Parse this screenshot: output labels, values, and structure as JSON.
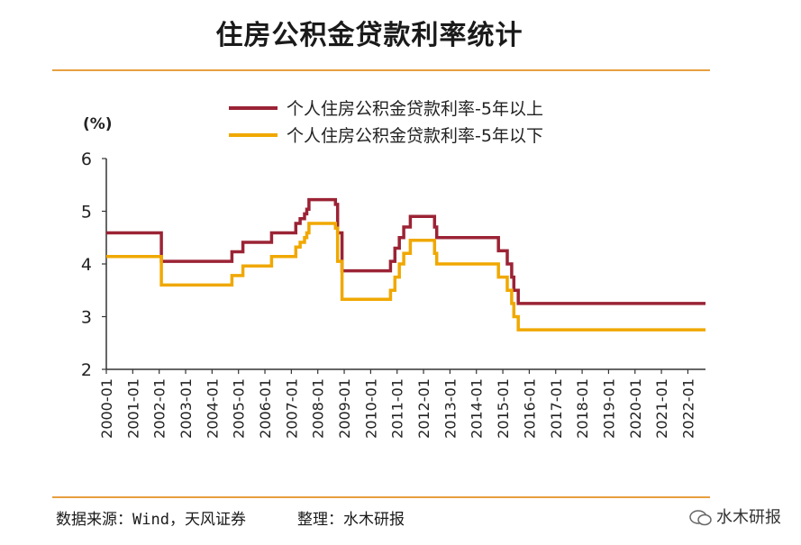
{
  "header": {
    "title": "住房公积金贷款利率统计"
  },
  "footer": {
    "source": "数据来源：Wind，天风证券",
    "compiler": "整理：水木研报",
    "watermark": "水木研报"
  },
  "colors": {
    "accent": "#e8a040",
    "series1": "#9b2335",
    "series2": "#f0a800"
  },
  "chart_data": {
    "type": "line",
    "ylabel": "(%)",
    "ylim": [
      2,
      6
    ],
    "yticks": [
      "2",
      "3",
      "4",
      "5",
      "6"
    ],
    "xlim": [
      "2000-01",
      "2022-09"
    ],
    "xticks": [
      "2000-01",
      "2001-01",
      "2002-01",
      "2003-01",
      "2004-01",
      "2005-01",
      "2006-01",
      "2007-01",
      "2008-01",
      "2009-01",
      "2010-01",
      "2011-01",
      "2012-01",
      "2013-01",
      "2014-01",
      "2015-01",
      "2016-01",
      "2017-01",
      "2018-01",
      "2019-01",
      "2020-01",
      "2021-01",
      "2022-01"
    ],
    "legend_position": "top",
    "grid": false,
    "series": [
      {
        "name": "个人住房公积金贷款利率-5年以上",
        "points": [
          [
            "2000-01",
            4.59
          ],
          [
            "2002-02",
            4.59
          ],
          [
            "2002-02",
            4.05
          ],
          [
            "2004-10",
            4.05
          ],
          [
            "2004-10",
            4.23
          ],
          [
            "2005-03",
            4.23
          ],
          [
            "2005-03",
            4.41
          ],
          [
            "2006-04",
            4.41
          ],
          [
            "2006-04",
            4.59
          ],
          [
            "2007-03",
            4.59
          ],
          [
            "2007-03",
            4.77
          ],
          [
            "2007-05",
            4.77
          ],
          [
            "2007-05",
            4.86
          ],
          [
            "2007-07",
            4.86
          ],
          [
            "2007-07",
            4.95
          ],
          [
            "2007-08",
            4.95
          ],
          [
            "2007-08",
            5.04
          ],
          [
            "2007-09",
            5.04
          ],
          [
            "2007-09",
            5.22
          ],
          [
            "2008-09",
            5.22
          ],
          [
            "2008-09",
            5.13
          ],
          [
            "2008-10",
            5.13
          ],
          [
            "2008-10",
            4.86
          ],
          [
            "2008-10",
            4.59
          ],
          [
            "2008-12",
            4.59
          ],
          [
            "2008-12",
            3.87
          ],
          [
            "2010-10",
            3.87
          ],
          [
            "2010-10",
            4.05
          ],
          [
            "2010-12",
            4.05
          ],
          [
            "2010-12",
            4.3
          ],
          [
            "2011-02",
            4.3
          ],
          [
            "2011-02",
            4.5
          ],
          [
            "2011-04",
            4.5
          ],
          [
            "2011-04",
            4.7
          ],
          [
            "2011-07",
            4.7
          ],
          [
            "2011-07",
            4.9
          ],
          [
            "2012-06",
            4.9
          ],
          [
            "2012-06",
            4.7
          ],
          [
            "2012-07",
            4.7
          ],
          [
            "2012-07",
            4.5
          ],
          [
            "2014-11",
            4.5
          ],
          [
            "2014-11",
            4.25
          ],
          [
            "2015-03",
            4.25
          ],
          [
            "2015-03",
            4.0
          ],
          [
            "2015-05",
            4.0
          ],
          [
            "2015-05",
            3.75
          ],
          [
            "2015-06",
            3.75
          ],
          [
            "2015-06",
            3.5
          ],
          [
            "2015-08",
            3.5
          ],
          [
            "2015-08",
            3.25
          ],
          [
            "2022-09",
            3.25
          ]
        ]
      },
      {
        "name": "个人住房公积金贷款利率-5年以下",
        "points": [
          [
            "2000-01",
            4.14
          ],
          [
            "2002-02",
            4.14
          ],
          [
            "2002-02",
            3.6
          ],
          [
            "2004-10",
            3.6
          ],
          [
            "2004-10",
            3.78
          ],
          [
            "2005-03",
            3.78
          ],
          [
            "2005-03",
            3.96
          ],
          [
            "2006-04",
            3.96
          ],
          [
            "2006-04",
            4.14
          ],
          [
            "2007-03",
            4.14
          ],
          [
            "2007-03",
            4.32
          ],
          [
            "2007-05",
            4.32
          ],
          [
            "2007-05",
            4.41
          ],
          [
            "2007-07",
            4.41
          ],
          [
            "2007-07",
            4.5
          ],
          [
            "2007-08",
            4.5
          ],
          [
            "2007-08",
            4.59
          ],
          [
            "2007-09",
            4.59
          ],
          [
            "2007-09",
            4.77
          ],
          [
            "2008-09",
            4.77
          ],
          [
            "2008-09",
            4.68
          ],
          [
            "2008-10",
            4.68
          ],
          [
            "2008-10",
            4.41
          ],
          [
            "2008-10",
            4.05
          ],
          [
            "2008-12",
            4.05
          ],
          [
            "2008-12",
            3.33
          ],
          [
            "2010-10",
            3.33
          ],
          [
            "2010-10",
            3.5
          ],
          [
            "2010-12",
            3.5
          ],
          [
            "2010-12",
            3.75
          ],
          [
            "2011-02",
            3.75
          ],
          [
            "2011-02",
            4.0
          ],
          [
            "2011-04",
            4.0
          ],
          [
            "2011-04",
            4.2
          ],
          [
            "2011-07",
            4.2
          ],
          [
            "2011-07",
            4.45
          ],
          [
            "2012-06",
            4.45
          ],
          [
            "2012-06",
            4.2
          ],
          [
            "2012-07",
            4.2
          ],
          [
            "2012-07",
            4.0
          ],
          [
            "2014-11",
            4.0
          ],
          [
            "2014-11",
            3.75
          ],
          [
            "2015-03",
            3.75
          ],
          [
            "2015-03",
            3.5
          ],
          [
            "2015-05",
            3.5
          ],
          [
            "2015-05",
            3.25
          ],
          [
            "2015-06",
            3.25
          ],
          [
            "2015-06",
            3.0
          ],
          [
            "2015-08",
            3.0
          ],
          [
            "2015-08",
            2.75
          ],
          [
            "2022-09",
            2.75
          ]
        ]
      }
    ]
  }
}
